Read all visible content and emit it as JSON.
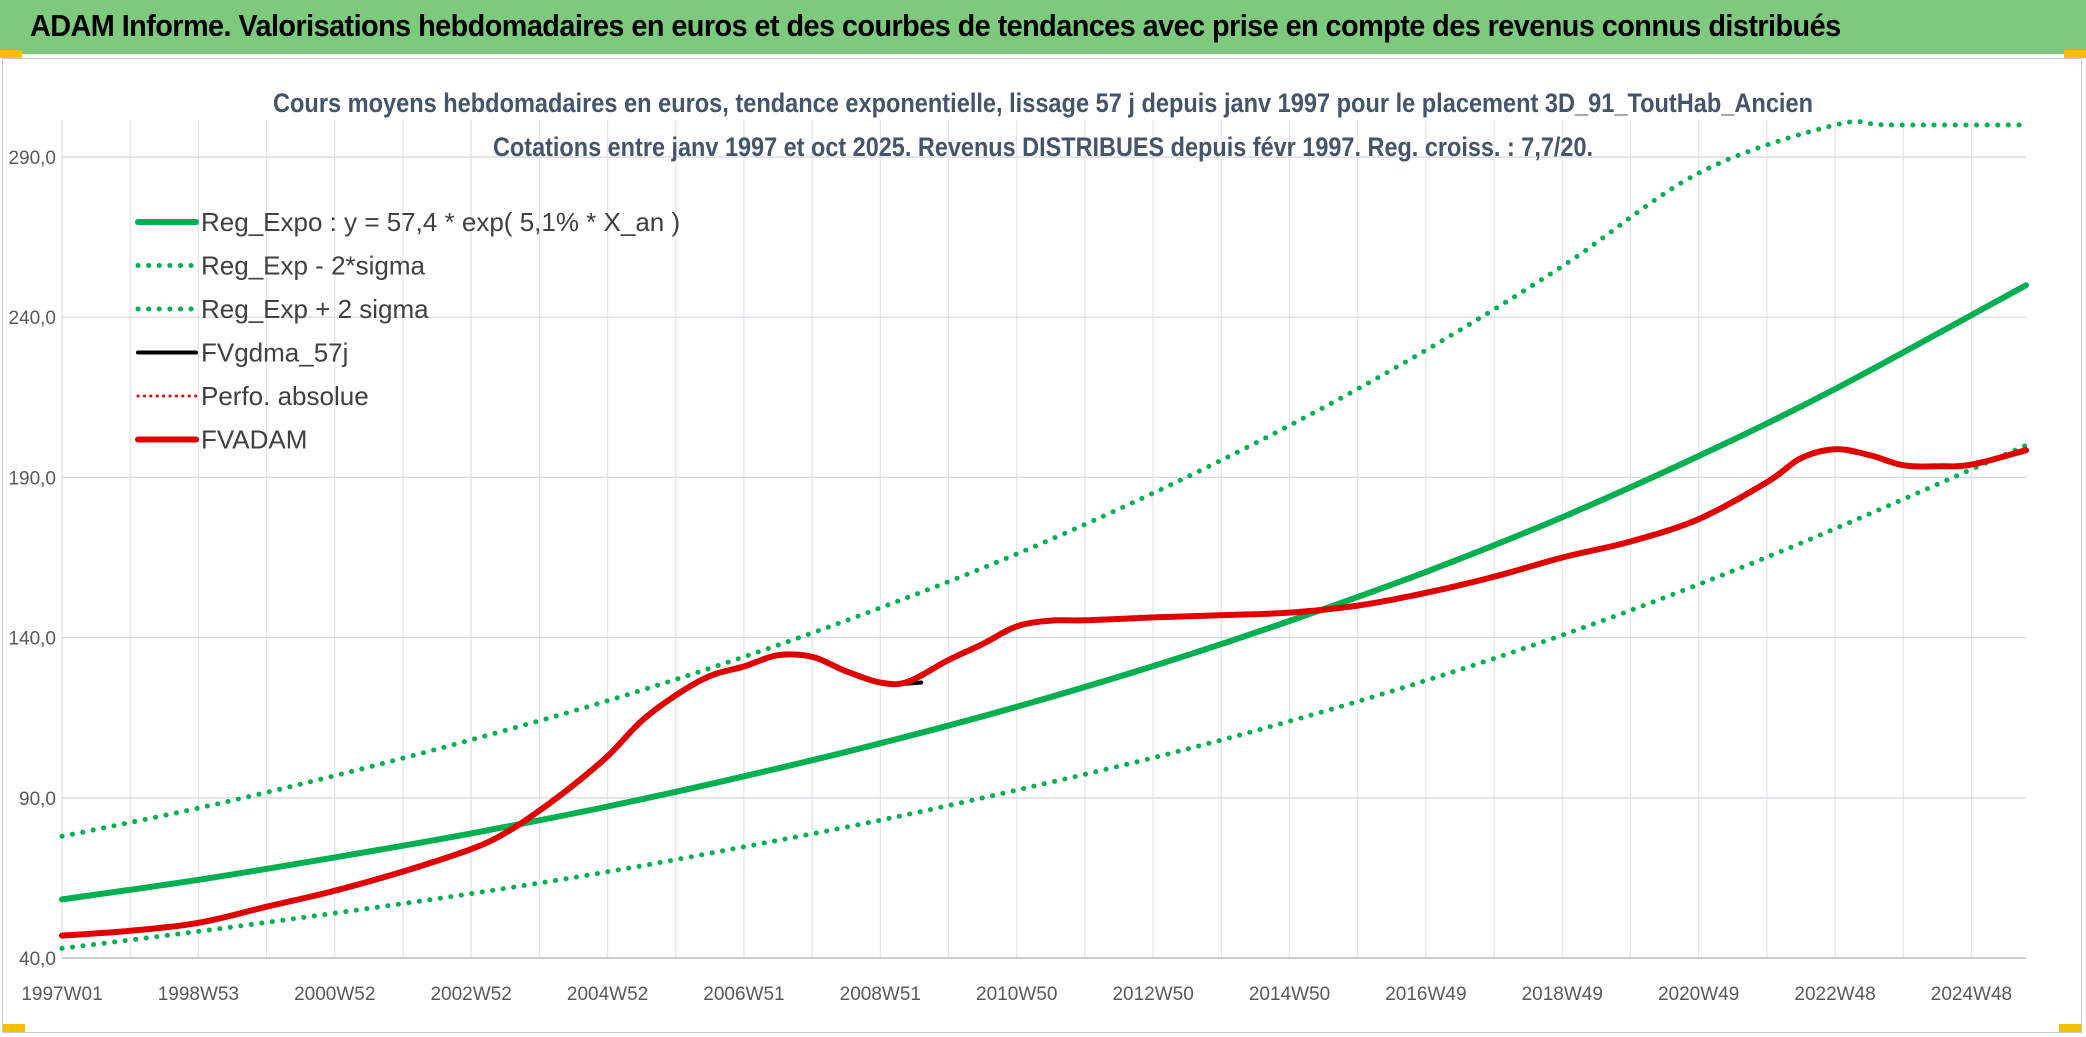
{
  "header": {
    "title": "ADAM Informe. Valorisations hebdomadaires en euros et des courbes de tendances avec prise en compte des revenus connus distribués"
  },
  "chart_data": {
    "type": "line",
    "title": "Cours moyens hebdomadaires en euros, tendance exponentielle, lissage 57 j depuis janv 1997 pour le placement 3D_91_ToutHab_Ancien",
    "subtitle": "Cotations entre janv 1997 et oct 2025. Revenus DISTRIBUES depuis févr 1997. Reg. croiss. : 7,7/20.",
    "xlabel": "",
    "ylabel": "",
    "xlim": [
      1997.0,
      2025.8
    ],
    "ylim": [
      40,
      300
    ],
    "y_ticks": [
      {
        "value": 40,
        "label": "40,0"
      },
      {
        "value": 90,
        "label": "90,0"
      },
      {
        "value": 140,
        "label": "140,0"
      },
      {
        "value": 190,
        "label": "190,0"
      },
      {
        "value": 240,
        "label": "240,0"
      },
      {
        "value": 290,
        "label": "290,0"
      }
    ],
    "x_ticks": [
      {
        "value": 1997.0,
        "label": "1997W01"
      },
      {
        "value": 1999.0,
        "label": "1998W53"
      },
      {
        "value": 2001.0,
        "label": "2000W52"
      },
      {
        "value": 2003.0,
        "label": "2002W52"
      },
      {
        "value": 2005.0,
        "label": "2004W52"
      },
      {
        "value": 2007.0,
        "label": "2006W51"
      },
      {
        "value": 2009.0,
        "label": "2008W51"
      },
      {
        "value": 2011.0,
        "label": "2010W50"
      },
      {
        "value": 2013.0,
        "label": "2012W50"
      },
      {
        "value": 2015.0,
        "label": "2014W50"
      },
      {
        "value": 2017.0,
        "label": "2016W49"
      },
      {
        "value": 2019.0,
        "label": "2018W49"
      },
      {
        "value": 2021.0,
        "label": "2020W49"
      },
      {
        "value": 2023.0,
        "label": "2022W48"
      },
      {
        "value": 2025.0,
        "label": "2024W48"
      }
    ],
    "legend_position": "top-left",
    "series": [
      {
        "name": "Reg_Expo : y = 57,4 * exp( 5,1% *  X_an )",
        "style": "solid",
        "color": "#00b050",
        "width": 6,
        "x": [
          1997,
          1999,
          2001,
          2003,
          2005,
          2007,
          2009,
          2011,
          2013,
          2015,
          2017,
          2019,
          2021,
          2023,
          2025.8
        ],
        "values": [
          58.3,
          64.4,
          71.4,
          78.9,
          87.3,
          96.7,
          107.0,
          118.4,
          131.1,
          145.2,
          160.5,
          177.6,
          196.7,
          217.6,
          250.0
        ]
      },
      {
        "name": "Reg_Exp - 2*sigma",
        "style": "dotted",
        "color": "#00b050",
        "width": 5,
        "x": [
          1997,
          1999,
          2001,
          2003,
          2005,
          2007,
          2009,
          2011,
          2013,
          2015,
          2017,
          2019,
          2021,
          2023,
          2025.8
        ],
        "values": [
          43.0,
          48.3,
          54.0,
          60.1,
          66.9,
          74.7,
          83.0,
          92.4,
          102.5,
          113.9,
          126.6,
          140.8,
          156.6,
          174.0,
          200.0
        ]
      },
      {
        "name": "Reg_Exp + 2 sigma",
        "style": "dotted",
        "color": "#00b050",
        "width": 5,
        "x": [
          1997,
          1999,
          2001,
          2003,
          2005,
          2007,
          2009,
          2011,
          2013,
          2015,
          2017,
          2019,
          2021,
          2023,
          2023.8,
          2025.8
        ],
        "values": [
          78.0,
          86.8,
          96.9,
          108.1,
          120.3,
          134.0,
          149.3,
          166.1,
          185.1,
          206.2,
          229.7,
          255.9,
          285.0,
          310.0,
          300.0,
          300.0
        ]
      },
      {
        "name": "FVgdma_57j",
        "style": "solid",
        "color": "#000000",
        "width": 4,
        "x": [
          2009.0,
          2009.3,
          2009.6
        ],
        "values": [
          126.0,
          125.6,
          126.0
        ]
      },
      {
        "name": "Perfo. absolue",
        "style": "dotted",
        "color": "#e00000",
        "width": 3,
        "x": [],
        "values": []
      },
      {
        "name": "FVADAM",
        "style": "solid",
        "color": "#e00000",
        "width": 6,
        "x": [
          1997,
          1998,
          1999,
          2000,
          2001,
          2002,
          2003,
          2003.5,
          2004,
          2004.5,
          2005,
          2005.5,
          2006,
          2006.5,
          2007,
          2007.5,
          2008,
          2008.5,
          2009,
          2009.4,
          2010,
          2010.5,
          2011,
          2011.5,
          2012,
          2013,
          2014,
          2015,
          2016,
          2017,
          2018,
          2019,
          2020,
          2021,
          2022,
          2022.5,
          2023,
          2023.5,
          2024,
          2024.5,
          2025,
          2025.8
        ],
        "values": [
          47.0,
          48.5,
          51.0,
          56.0,
          61.0,
          67.0,
          74.0,
          79.0,
          86.0,
          94.0,
          103.0,
          114.0,
          122.0,
          128.0,
          131.0,
          134.5,
          134.0,
          129.5,
          126.0,
          126.2,
          133.0,
          138.0,
          143.5,
          145.3,
          145.4,
          146.3,
          147.0,
          147.8,
          150.0,
          154.0,
          159.0,
          165.0,
          170.0,
          177.0,
          188.5,
          196.0,
          198.8,
          197.0,
          193.8,
          193.5,
          194.0,
          198.5
        ]
      }
    ]
  }
}
